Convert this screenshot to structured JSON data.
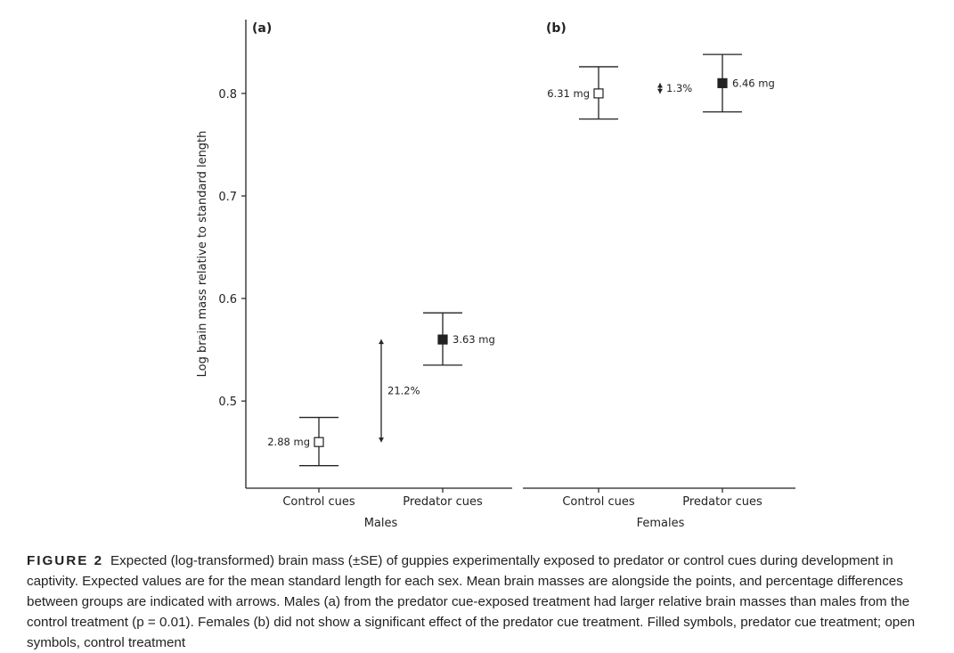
{
  "chart_data": {
    "type": "scatter",
    "ylabel": "Log brain mass relative to standard length",
    "yticks": [
      0.5,
      0.6,
      0.7,
      0.8
    ],
    "ylim": [
      0.415,
      0.872
    ],
    "panels": [
      {
        "label": "(a)",
        "xlabel": "Males",
        "categories": [
          "Control cues",
          "Predator cues"
        ],
        "points": [
          {
            "category": "Control cues",
            "y": 0.46,
            "se_low": 0.437,
            "se_high": 0.484,
            "filled": false,
            "annotation": "2.88 mg",
            "annotation_side": "left"
          },
          {
            "category": "Predator cues",
            "y": 0.56,
            "se_low": 0.535,
            "se_high": 0.586,
            "filled": true,
            "annotation": "3.63 mg",
            "annotation_side": "right"
          }
        ],
        "difference": {
          "label": "21.2%",
          "y_from": 0.46,
          "y_to": 0.56
        }
      },
      {
        "label": "(b)",
        "xlabel": "Females",
        "categories": [
          "Control cues",
          "Predator cues"
        ],
        "points": [
          {
            "category": "Control cues",
            "y": 0.8,
            "se_low": 0.775,
            "se_high": 0.826,
            "filled": false,
            "annotation": "6.31 mg",
            "annotation_side": "left"
          },
          {
            "category": "Predator cues",
            "y": 0.81,
            "se_low": 0.782,
            "se_high": 0.838,
            "filled": true,
            "annotation": "6.46 mg",
            "annotation_side": "right"
          }
        ],
        "difference": {
          "label": "1.3%",
          "y_from": 0.8,
          "y_to": 0.81
        }
      }
    ]
  },
  "caption": {
    "label": "FIGURE 2",
    "text": "Expected (log-transformed) brain mass (±SE) of guppies experimentally exposed to predator or control cues during development in captivity. Expected values are for the mean standard length for each sex. Mean brain masses are alongside the points, and percentage differences between groups are indicated with arrows. Males (a) from the predator cue-exposed treatment had larger relative brain masses than males from the control treatment (p = 0.01). Females (b) did not show a significant effect of the predator cue treatment. Filled symbols, predator cue treatment; open symbols, control treatment"
  }
}
